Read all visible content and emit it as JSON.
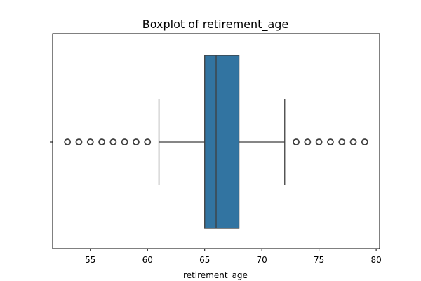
{
  "chart_data": {
    "type": "boxplot",
    "title": "Boxplot of retirement_age",
    "xlabel": "retirement_age",
    "ylabel": "",
    "orientation": "horizontal",
    "xlim": [
      51.7,
      80.3
    ],
    "xticks": [
      55,
      60,
      65,
      70,
      75,
      80
    ],
    "box": {
      "whisker_low": 61,
      "q1": 65,
      "median": 66,
      "q3": 68,
      "whisker_high": 72
    },
    "outliers": [
      53,
      54,
      55,
      56,
      57,
      58,
      59,
      60,
      73,
      74,
      75,
      76,
      77,
      78,
      79
    ],
    "grid": false,
    "colors": {
      "box_fill": "#3274a1",
      "line": "#3f3f3f",
      "axis": "#000000"
    }
  }
}
